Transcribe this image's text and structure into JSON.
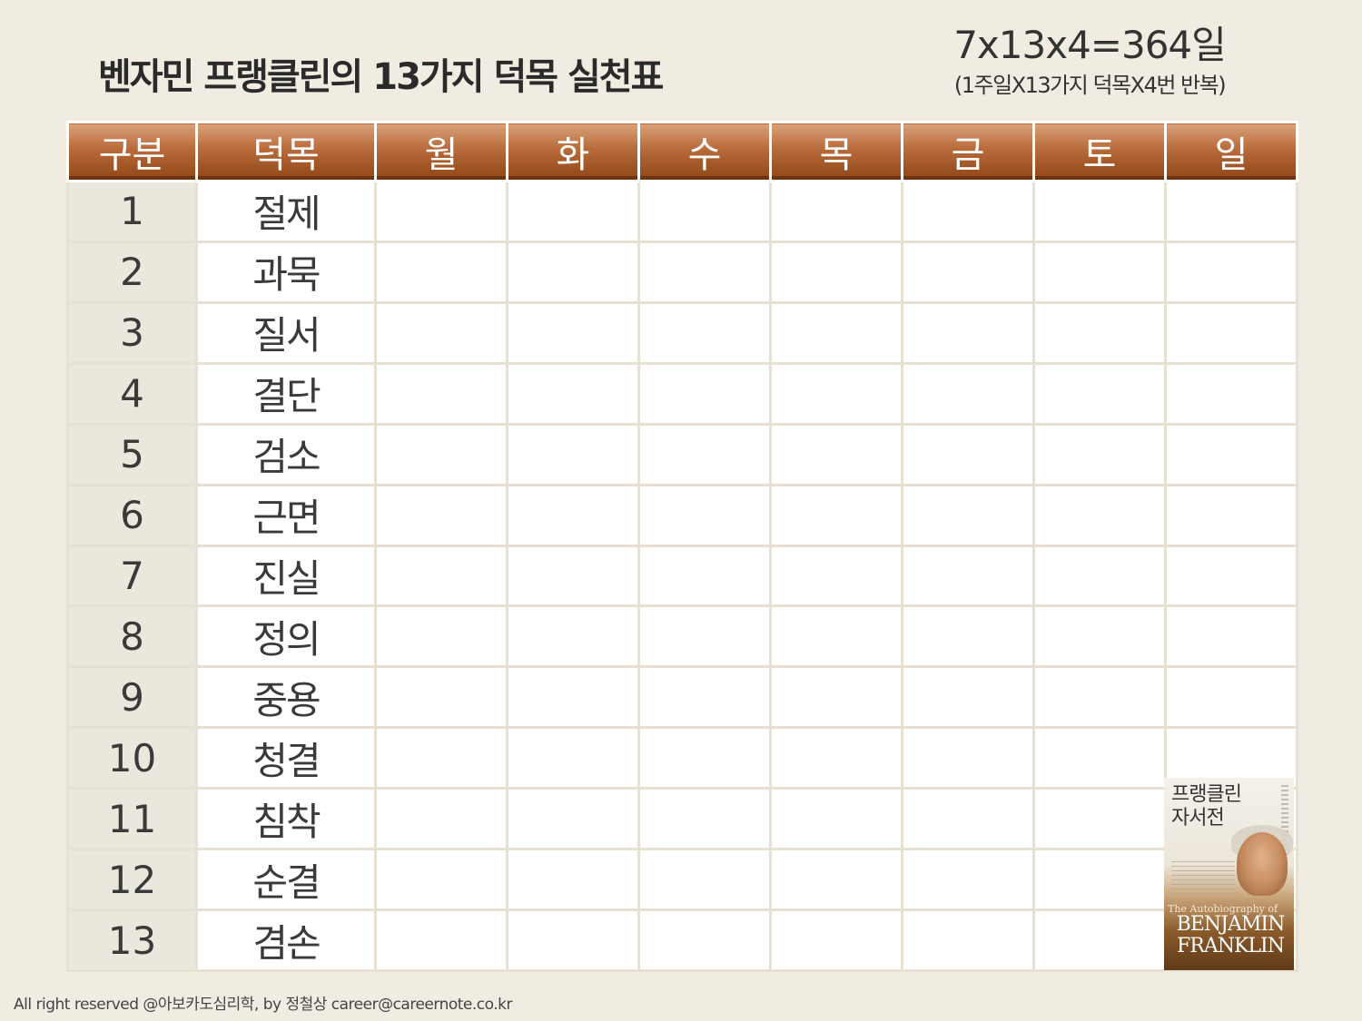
{
  "title": "벤자민 프랭클린의 13가지 덕목 실천표",
  "formula": {
    "main": "7x13x4=364일",
    "sub": "(1주일X13가지 덕목X4번 반복)"
  },
  "table": {
    "headers": [
      "구분",
      "덕목",
      "월",
      "화",
      "수",
      "목",
      "금",
      "토",
      "일"
    ],
    "rows": [
      {
        "num": "1",
        "virtue": "절제"
      },
      {
        "num": "2",
        "virtue": "과묵"
      },
      {
        "num": "3",
        "virtue": "질서"
      },
      {
        "num": "4",
        "virtue": "결단"
      },
      {
        "num": "5",
        "virtue": "검소"
      },
      {
        "num": "6",
        "virtue": "근면"
      },
      {
        "num": "7",
        "virtue": "진실"
      },
      {
        "num": "8",
        "virtue": "정의"
      },
      {
        "num": "9",
        "virtue": "중용"
      },
      {
        "num": "10",
        "virtue": "청결"
      },
      {
        "num": "11",
        "virtue": "침착"
      },
      {
        "num": "12",
        "virtue": "순결"
      },
      {
        "num": "13",
        "virtue": "겸손"
      }
    ]
  },
  "book": {
    "title_line1": "프랭클린",
    "title_line2": "자서전",
    "subtitle": "The Autobiography of",
    "name_line1": "BENJAMIN",
    "name_line2": "FRANKLIN"
  },
  "footer": "All right reserved @아보카도심리학, by 정철상 career@careernote.co.kr",
  "colors": {
    "background": "#f0ece2",
    "header_brown": "#a8592a",
    "number_column": "#eae7dc"
  }
}
